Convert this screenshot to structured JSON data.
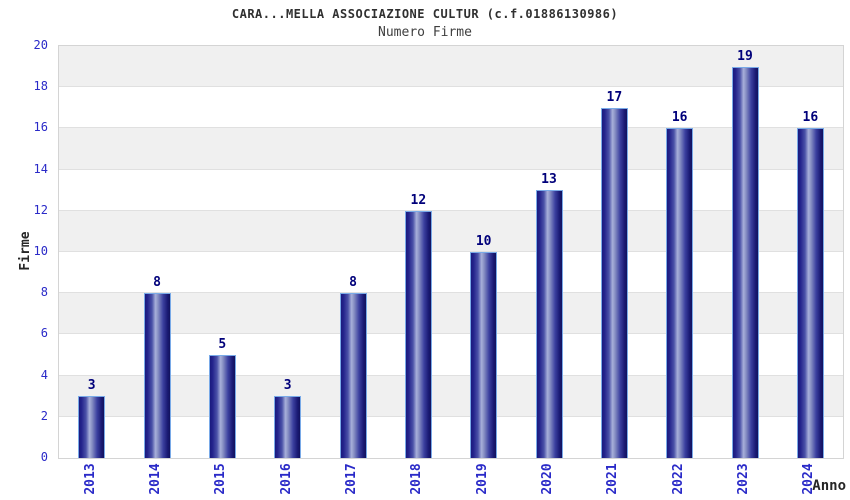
{
  "chart_data": {
    "type": "bar",
    "title": "CARA...MELLA ASSOCIAZIONE CULTUR (c.f.01886130986)",
    "subtitle": "Numero Firme",
    "xlabel": "Anno",
    "ylabel": "Firme",
    "categories": [
      "2013",
      "2014",
      "2015",
      "2016",
      "2017",
      "2018",
      "2019",
      "2020",
      "2021",
      "2022",
      "2023",
      "2024"
    ],
    "values": [
      3,
      8,
      5,
      3,
      8,
      12,
      10,
      13,
      17,
      16,
      19,
      16
    ],
    "ylim": [
      0,
      20
    ],
    "ytick_step": 2,
    "legend_position": "none",
    "grid": "alternating-horizontal-bands-every-2",
    "colors": {
      "bar_edge": "#1a1a7e",
      "bar_highlight": "#a8b0da",
      "bar_outline": "#79aae8",
      "axis_tick_label": "#2a2ac8",
      "value_label": "#00007a",
      "band_gray": "#f0f0f0",
      "plot_border": "#d4d4d4",
      "title_text": "#303030"
    }
  }
}
